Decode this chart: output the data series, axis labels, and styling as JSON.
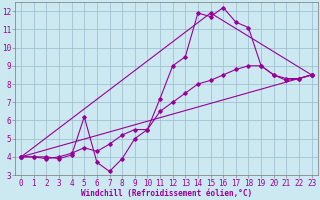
{
  "background_color": "#cce8f0",
  "grid_color": "#99bbcc",
  "line_color": "#990099",
  "xlim": [
    -0.5,
    23.5
  ],
  "ylim": [
    3,
    12.5
  ],
  "xlabel": "Windchill (Refroidissement éolien,°C)",
  "xlabel_fontsize": 5.5,
  "xticks": [
    0,
    1,
    2,
    3,
    4,
    5,
    6,
    7,
    8,
    9,
    10,
    11,
    12,
    13,
    14,
    15,
    16,
    17,
    18,
    19,
    20,
    21,
    22,
    23
  ],
  "yticks": [
    3,
    4,
    5,
    6,
    7,
    8,
    9,
    10,
    11,
    12
  ],
  "tick_fontsize": 5.5,
  "series": [
    {
      "x": [
        0,
        1,
        2,
        3,
        4,
        5,
        6,
        7,
        8,
        9,
        10,
        11,
        12,
        13,
        14,
        15,
        16,
        17,
        18,
        19,
        20,
        21,
        22,
        23
      ],
      "y": [
        4.0,
        4.0,
        4.0,
        3.9,
        4.1,
        6.2,
        3.7,
        3.2,
        3.9,
        5.0,
        5.5,
        7.2,
        9.0,
        9.5,
        11.9,
        11.7,
        12.2,
        11.4,
        11.1,
        9.0,
        8.5,
        8.2,
        8.3,
        8.5
      ],
      "marker": "D",
      "markersize": 1.8,
      "linewidth": 0.8
    },
    {
      "x": [
        0,
        1,
        2,
        3,
        4,
        5,
        6,
        7,
        8,
        9,
        10,
        11,
        12,
        13,
        14,
        15,
        16,
        17,
        18,
        19,
        20,
        21,
        22,
        23
      ],
      "y": [
        4.0,
        4.0,
        3.9,
        4.0,
        4.2,
        4.5,
        4.3,
        4.7,
        5.2,
        5.5,
        5.5,
        6.5,
        7.0,
        7.5,
        8.0,
        8.2,
        8.5,
        8.8,
        9.0,
        9.0,
        8.5,
        8.3,
        8.3,
        8.5
      ],
      "marker": "D",
      "markersize": 1.8,
      "linewidth": 0.8
    },
    {
      "x": [
        0,
        23
      ],
      "y": [
        4.0,
        8.5
      ],
      "marker": "D",
      "markersize": 1.8,
      "linewidth": 0.8
    },
    {
      "x": [
        0,
        15,
        23
      ],
      "y": [
        4.0,
        11.9,
        8.5
      ],
      "marker": "D",
      "markersize": 1.8,
      "linewidth": 0.8
    }
  ]
}
